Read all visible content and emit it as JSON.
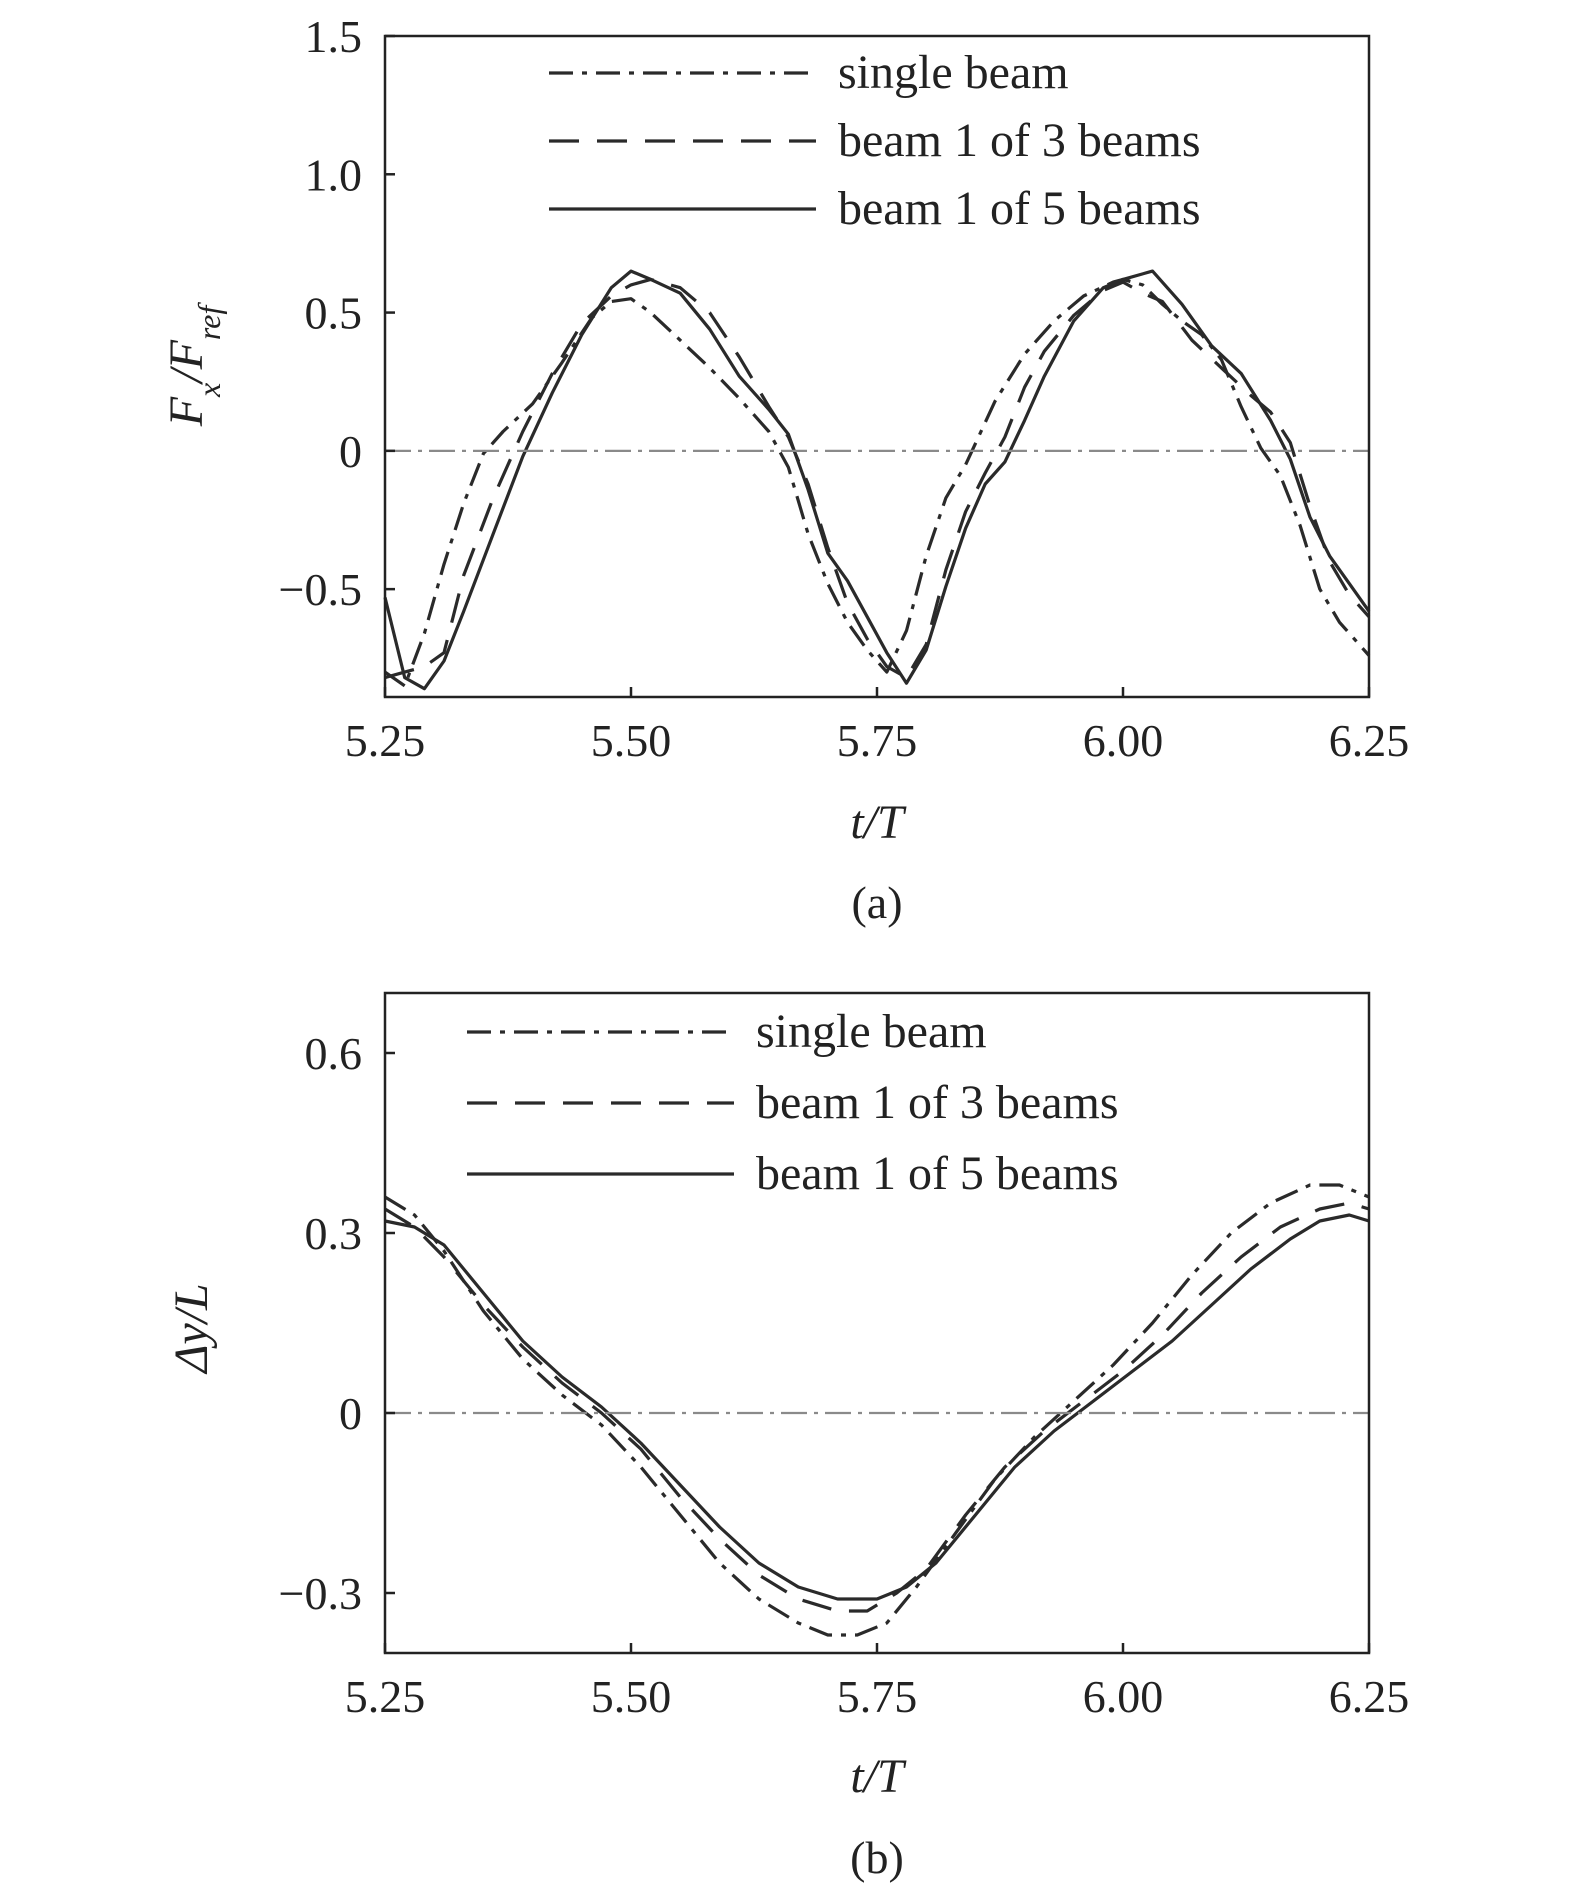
{
  "chart_data": [
    {
      "id": "a",
      "type": "line",
      "caption": "(a)",
      "xlabel": "t/T",
      "ylabel_main": "F",
      "ylabel_sub1": "x",
      "ylabel_mid": "/F",
      "ylabel_sub2": "ref",
      "xlim": [
        5.25,
        6.25
      ],
      "ylim": [
        -0.89,
        1.5
      ],
      "xticks": [
        5.25,
        5.5,
        5.75,
        6.0,
        6.25
      ],
      "xtick_labels": [
        "5.25",
        "5.50",
        "5.75",
        "6.00",
        "6.25"
      ],
      "yticks": [
        -0.5,
        0,
        0.5,
        1.0,
        1.5
      ],
      "ytick_labels": [
        "−0.5",
        "0",
        "0.5",
        "1.0",
        "1.5"
      ],
      "zero_line": 0,
      "legend_position": "top-center",
      "series": [
        {
          "name": "single beam",
          "style": "dash-dot",
          "x": [
            5.25,
            5.27,
            5.29,
            5.31,
            5.33,
            5.35,
            5.37,
            5.4,
            5.43,
            5.46,
            5.48,
            5.5,
            5.52,
            5.55,
            5.58,
            5.61,
            5.64,
            5.66,
            5.68,
            5.7,
            5.72,
            5.74,
            5.76,
            5.78,
            5.8,
            5.82,
            5.84,
            5.87,
            5.9,
            5.93,
            5.96,
            5.99,
            6.0,
            6.02,
            6.04,
            6.06,
            6.08,
            6.1,
            6.12,
            6.14,
            6.16,
            6.18,
            6.2,
            6.22,
            6.25
          ],
          "y": [
            -0.8,
            -0.85,
            -0.66,
            -0.41,
            -0.19,
            -0.01,
            0.07,
            0.17,
            0.32,
            0.48,
            0.54,
            0.55,
            0.5,
            0.4,
            0.3,
            0.19,
            0.07,
            -0.06,
            -0.3,
            -0.48,
            -0.62,
            -0.72,
            -0.8,
            -0.65,
            -0.38,
            -0.17,
            -0.05,
            0.18,
            0.35,
            0.47,
            0.56,
            0.61,
            0.62,
            0.6,
            0.53,
            0.47,
            0.42,
            0.33,
            0.16,
            0.01,
            -0.09,
            -0.27,
            -0.5,
            -0.62,
            -0.74
          ]
        },
        {
          "name": "beam 1 of 3 beams",
          "style": "dashed",
          "x": [
            5.25,
            5.27,
            5.29,
            5.31,
            5.33,
            5.36,
            5.39,
            5.42,
            5.45,
            5.48,
            5.5,
            5.52,
            5.55,
            5.58,
            5.61,
            5.64,
            5.66,
            5.68,
            5.7,
            5.72,
            5.74,
            5.76,
            5.78,
            5.8,
            5.82,
            5.84,
            5.86,
            5.88,
            5.9,
            5.92,
            5.95,
            5.98,
            6.0,
            6.02,
            6.04,
            6.07,
            6.1,
            6.13,
            6.15,
            6.17,
            6.19,
            6.21,
            6.23,
            6.25
          ],
          "y": [
            -0.82,
            -0.8,
            -0.78,
            -0.73,
            -0.45,
            -0.17,
            0.07,
            0.28,
            0.46,
            0.56,
            0.6,
            0.62,
            0.59,
            0.5,
            0.34,
            0.16,
            0.05,
            -0.12,
            -0.35,
            -0.55,
            -0.68,
            -0.78,
            -0.82,
            -0.7,
            -0.43,
            -0.22,
            -0.08,
            0.05,
            0.23,
            0.36,
            0.49,
            0.58,
            0.61,
            0.57,
            0.54,
            0.4,
            0.3,
            0.2,
            0.14,
            0.03,
            -0.2,
            -0.4,
            -0.52,
            -0.6
          ]
        },
        {
          "name": "beam 1 of 5 beams",
          "style": "solid",
          "x": [
            5.25,
            5.27,
            5.29,
            5.31,
            5.33,
            5.36,
            5.39,
            5.42,
            5.45,
            5.48,
            5.5,
            5.52,
            5.55,
            5.58,
            5.61,
            5.64,
            5.66,
            5.68,
            5.7,
            5.72,
            5.74,
            5.76,
            5.78,
            5.8,
            5.82,
            5.84,
            5.86,
            5.88,
            5.9,
            5.92,
            5.95,
            5.98,
            6.0,
            6.03,
            6.06,
            6.09,
            6.12,
            6.15,
            6.17,
            6.19,
            6.21,
            6.23,
            6.25
          ],
          "y": [
            -0.53,
            -0.82,
            -0.86,
            -0.76,
            -0.58,
            -0.3,
            -0.02,
            0.21,
            0.42,
            0.59,
            0.65,
            0.62,
            0.57,
            0.44,
            0.27,
            0.15,
            0.06,
            -0.14,
            -0.37,
            -0.47,
            -0.6,
            -0.73,
            -0.84,
            -0.72,
            -0.49,
            -0.28,
            -0.12,
            -0.04,
            0.11,
            0.27,
            0.47,
            0.59,
            0.62,
            0.65,
            0.53,
            0.38,
            0.28,
            0.11,
            -0.03,
            -0.24,
            -0.38,
            -0.48,
            -0.58
          ]
        }
      ]
    },
    {
      "id": "b",
      "type": "line",
      "caption": "(b)",
      "xlabel": "t/T",
      "ylabel": "Δy/L",
      "xlim": [
        5.25,
        6.25
      ],
      "ylim": [
        -0.4,
        0.7
      ],
      "xticks": [
        5.25,
        5.5,
        5.75,
        6.0,
        6.25
      ],
      "xtick_labels": [
        "5.25",
        "5.50",
        "5.75",
        "6.00",
        "6.25"
      ],
      "yticks": [
        -0.3,
        0,
        0.3,
        0.6
      ],
      "ytick_labels": [
        "−0.3",
        "0",
        "0.3",
        "0.6"
      ],
      "zero_line": 0,
      "legend_position": "top-center",
      "series": [
        {
          "name": "single beam",
          "style": "dash-dot",
          "x": [
            5.25,
            5.28,
            5.31,
            5.35,
            5.39,
            5.43,
            5.47,
            5.51,
            5.55,
            5.59,
            5.63,
            5.67,
            5.7,
            5.73,
            5.76,
            5.79,
            5.83,
            5.87,
            5.91,
            5.95,
            5.99,
            6.03,
            6.07,
            6.11,
            6.15,
            6.19,
            6.22,
            6.25
          ],
          "y": [
            0.36,
            0.33,
            0.27,
            0.17,
            0.09,
            0.03,
            -0.02,
            -0.09,
            -0.17,
            -0.25,
            -0.31,
            -0.35,
            -0.37,
            -0.37,
            -0.35,
            -0.29,
            -0.2,
            -0.11,
            -0.04,
            0.02,
            0.08,
            0.15,
            0.23,
            0.3,
            0.35,
            0.38,
            0.38,
            0.36
          ]
        },
        {
          "name": "beam 1 of 3 beams",
          "style": "dashed",
          "x": [
            5.25,
            5.28,
            5.31,
            5.35,
            5.39,
            5.43,
            5.47,
            5.51,
            5.55,
            5.59,
            5.63,
            5.67,
            5.71,
            5.74,
            5.77,
            5.8,
            5.84,
            5.88,
            5.92,
            5.96,
            6.0,
            6.04,
            6.08,
            6.12,
            6.16,
            6.2,
            6.23,
            6.25
          ],
          "y": [
            0.34,
            0.31,
            0.26,
            0.18,
            0.11,
            0.05,
            0.0,
            -0.06,
            -0.14,
            -0.21,
            -0.27,
            -0.31,
            -0.33,
            -0.33,
            -0.3,
            -0.26,
            -0.17,
            -0.09,
            -0.03,
            0.02,
            0.07,
            0.13,
            0.2,
            0.26,
            0.31,
            0.34,
            0.35,
            0.34
          ]
        },
        {
          "name": "beam 1 of 5 beams",
          "style": "solid",
          "x": [
            5.25,
            5.28,
            5.31,
            5.35,
            5.39,
            5.43,
            5.47,
            5.51,
            5.55,
            5.59,
            5.63,
            5.67,
            5.71,
            5.75,
            5.78,
            5.81,
            5.85,
            5.89,
            5.93,
            5.97,
            6.01,
            6.05,
            6.09,
            6.13,
            6.17,
            6.2,
            6.23,
            6.25
          ],
          "y": [
            0.32,
            0.31,
            0.28,
            0.2,
            0.12,
            0.06,
            0.01,
            -0.05,
            -0.12,
            -0.19,
            -0.25,
            -0.29,
            -0.31,
            -0.31,
            -0.29,
            -0.25,
            -0.17,
            -0.09,
            -0.03,
            0.02,
            0.07,
            0.12,
            0.18,
            0.24,
            0.29,
            0.32,
            0.33,
            0.32
          ]
        }
      ]
    }
  ]
}
